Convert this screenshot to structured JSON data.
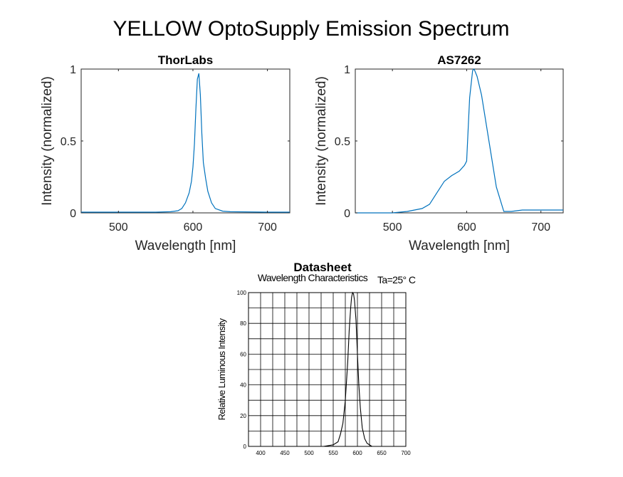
{
  "figure": {
    "title": "YELLOW OptoSupply Emission Spectrum"
  },
  "colors": {
    "line": "#0072bd",
    "datasheet_line": "#000000",
    "axis": "#262626"
  },
  "chart_data": [
    {
      "type": "line",
      "title": "ThorLabs",
      "xlabel": "Wavelength [nm]",
      "ylabel": "Intensity (normalized)",
      "xlim": [
        450,
        730
      ],
      "ylim": [
        0,
        1
      ],
      "xticks": [
        500,
        600,
        700
      ],
      "yticks": [
        0,
        0.5,
        1
      ],
      "yticklabels": [
        "0",
        "0.5",
        "1"
      ],
      "grid": false,
      "x": [
        450,
        500,
        550,
        570,
        580,
        585,
        590,
        595,
        598,
        600,
        602,
        604,
        606,
        608,
        610,
        612,
        614,
        617,
        620,
        625,
        630,
        640,
        650,
        700,
        730
      ],
      "y": [
        0.005,
        0.005,
        0.005,
        0.008,
        0.015,
        0.03,
        0.07,
        0.14,
        0.22,
        0.32,
        0.48,
        0.72,
        0.93,
        0.97,
        0.82,
        0.55,
        0.35,
        0.24,
        0.15,
        0.07,
        0.03,
        0.012,
        0.008,
        0.005,
        0.005
      ]
    },
    {
      "type": "line",
      "title": "AS7262",
      "xlabel": "Wavelength [nm]",
      "ylabel": "Intensity (normalized)",
      "xlim": [
        450,
        730
      ],
      "ylim": [
        0,
        1
      ],
      "xticks": [
        500,
        600,
        700
      ],
      "yticks": [
        0,
        0.5,
        1
      ],
      "yticklabels": [
        "0",
        "0.5",
        "1"
      ],
      "grid": false,
      "x": [
        450,
        500,
        520,
        540,
        550,
        560,
        570,
        580,
        590,
        597,
        600,
        604,
        608,
        610,
        614,
        620,
        630,
        640,
        650,
        660,
        675,
        700,
        730
      ],
      "y": [
        0.0,
        0.0,
        0.01,
        0.03,
        0.06,
        0.14,
        0.22,
        0.26,
        0.29,
        0.33,
        0.36,
        0.8,
        0.99,
        1.0,
        0.95,
        0.82,
        0.5,
        0.18,
        0.01,
        0.01,
        0.02,
        0.02,
        0.02
      ]
    },
    {
      "type": "line",
      "title": "Datasheet",
      "subtitle": "Wavelength Characteristics",
      "annotation": "Ta=25° C",
      "xlabel": "",
      "ylabel": "Relative Luminous Intensity",
      "xlim": [
        375,
        700
      ],
      "ylim": [
        0,
        100
      ],
      "xticks": [
        400,
        450,
        500,
        550,
        600,
        650,
        700
      ],
      "yticks": [
        0,
        20,
        40,
        60,
        80,
        100
      ],
      "grid": true,
      "x": [
        530,
        550,
        560,
        565,
        570,
        575,
        580,
        583,
        586,
        588,
        590,
        592,
        594,
        597,
        600,
        603,
        606,
        610,
        615,
        620,
        630
      ],
      "y": [
        0,
        1,
        3,
        8,
        15,
        30,
        55,
        75,
        90,
        97,
        100,
        99,
        95,
        82,
        60,
        40,
        25,
        12,
        5,
        2,
        0
      ]
    }
  ]
}
